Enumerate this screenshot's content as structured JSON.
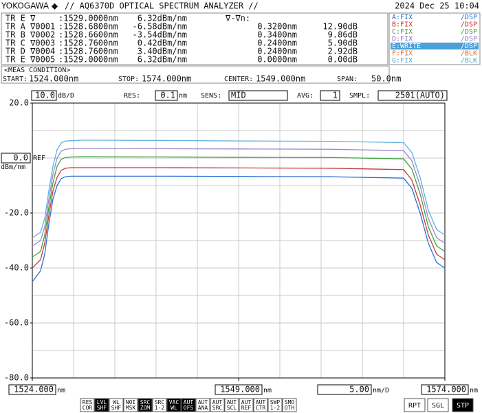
{
  "header": {
    "brand": "YOKOGAWA ◆",
    "title": "// AQ6370D OPTICAL SPECTRUM ANALYZER //",
    "datetime": "2024 Dec 25 10:04"
  },
  "marker_table": {
    "rows": [
      [
        "TR E ∇",
        ":1529.0000nm",
        "6.32dBm/nm",
        "∇-∇n:"
      ],
      [
        "TR A ∇0001",
        ":1528.6800nm",
        "-6.58dBm/nm",
        "0.3200nm",
        "12.90dB"
      ],
      [
        "TR B ∇0002",
        ":1528.6600nm",
        "-3.54dBm/nm",
        "0.3400nm",
        "9.86dB"
      ],
      [
        "TR C ∇0003",
        ":1528.7600nm",
        "0.42dBm/nm",
        "0.2400nm",
        "5.90dB"
      ],
      [
        "TR D ∇0004",
        ":1528.7600nm",
        "3.40dBm/nm",
        "0.2400nm",
        "2.92dB"
      ],
      [
        "TR E ∇0005",
        ":1529.0000nm",
        "6.32dBm/nm",
        "0.0000nm",
        "0.00dB"
      ]
    ]
  },
  "trace_legend": [
    {
      "trace": "A:FIX",
      "mode": "/DSP",
      "color": "#2a6fd0",
      "active": false
    },
    {
      "trace": "B:FIX",
      "mode": "/DSP",
      "color": "#d03030",
      "active": false
    },
    {
      "trace": "C:FIX",
      "mode": "/DSP",
      "color": "#40a040",
      "active": false
    },
    {
      "trace": "D:FIX",
      "mode": "/DSP",
      "color": "#9070c0",
      "active": false
    },
    {
      "trace": "E:WRITE",
      "mode": "/DSP",
      "color": "#4aa0d8",
      "active": true
    },
    {
      "trace": "F:FIX",
      "mode": "/BLK",
      "color": "#e07020",
      "active": false
    },
    {
      "trace": "G:FIX",
      "mode": "/BLK",
      "color": "#50a8d0",
      "active": false
    }
  ],
  "meas_condition": {
    "title": "<MEAS CONDITION>",
    "items": [
      {
        "label": "START:",
        "value": "1524.000nm"
      },
      {
        "label": "STOP:",
        "value": "1574.000nm"
      },
      {
        "label": "CENTER:",
        "value": "1549.000nm"
      },
      {
        "label": "SPAN:",
        "value": "50.0nm"
      }
    ]
  },
  "settings": [
    {
      "label": "RES:",
      "value": "0.1",
      "unit": "nm"
    },
    {
      "label": "SENS:",
      "value": "MID"
    },
    {
      "label": "AVG:",
      "value": "1"
    },
    {
      "label": "SMPL:",
      "value": "2501(AUTO)"
    }
  ],
  "chart_data": {
    "type": "line",
    "x": [
      1524,
      1525,
      1525.5,
      1526,
      1526.5,
      1527,
      1527.5,
      1528,
      1528.7,
      1530,
      1540,
      1550,
      1560,
      1569,
      1570,
      1571,
      1572,
      1573,
      1574
    ],
    "series": [
      {
        "color": "#60b0e0",
        "values": [
          -29,
          -27,
          -22,
          -12,
          -3,
          3,
          5.5,
          6.2,
          6.3,
          6.5,
          6.4,
          6.2,
          6.1,
          5.6,
          2,
          -7,
          -19,
          -26,
          -28
        ]
      },
      {
        "color": "#9a88c8",
        "values": [
          -32,
          -30,
          -25,
          -15,
          -6,
          0,
          2.5,
          3.2,
          3.4,
          3.5,
          3.4,
          3.3,
          3.2,
          2.7,
          -1,
          -10,
          -22,
          -29,
          -31
        ]
      },
      {
        "color": "#40a040",
        "values": [
          -36,
          -34,
          -28,
          -18,
          -9,
          -3,
          -0.5,
          0.2,
          0.4,
          0.5,
          0.4,
          0.3,
          0.2,
          -0.3,
          -4,
          -13,
          -25,
          -32,
          -34
        ]
      },
      {
        "color": "#c83a3a",
        "values": [
          -40,
          -37,
          -31,
          -21,
          -12,
          -7,
          -4.5,
          -3.7,
          -3.5,
          -3.5,
          -3.5,
          -3.6,
          -3.7,
          -4.2,
          -8,
          -17,
          -28,
          -35,
          -37
        ]
      },
      {
        "color": "#2a6fd0",
        "values": [
          -45,
          -41,
          -35,
          -24,
          -15,
          -10,
          -7.5,
          -6.8,
          -6.6,
          -6.6,
          -6.6,
          -6.7,
          -6.8,
          -7.3,
          -11,
          -20,
          -31,
          -38,
          -40
        ]
      }
    ],
    "xlim": [
      1524,
      1574
    ],
    "ylim": [
      -80,
      20
    ],
    "xticks": [
      {
        "value": 1524,
        "label": "1524.000"
      },
      {
        "value": 1549,
        "label": "1549.000"
      },
      {
        "value": 1574,
        "label": "1574.000"
      }
    ],
    "x_unit": "nm",
    "x_scale": {
      "value": 5,
      "label": "5.00"
    },
    "x_scale_unit": "nm/D",
    "yticks": [
      {
        "value": 20,
        "label": "20.0"
      },
      {
        "value": -20,
        "label": "-20.0"
      },
      {
        "value": -40,
        "label": "-40.0"
      },
      {
        "value": -60,
        "label": "-60.0"
      },
      {
        "value": -80,
        "label": "-80.0"
      }
    ],
    "y_scale": {
      "value": 10,
      "label": "10.0"
    },
    "y_scale_unit": "dB/D",
    "ref_level": {
      "value": 0,
      "label": "0.0"
    },
    "ref_text": "REF",
    "y_unit": "dBm/nm",
    "grid": true
  },
  "soft_keys": [
    {
      "lines": [
        "RES",
        "COR"
      ],
      "active": false
    },
    {
      "lines": [
        "LVL",
        "SHF"
      ],
      "active": true
    },
    {
      "lines": [
        "WL",
        "SHF"
      ],
      "active": false
    },
    {
      "lines": [
        "NOI",
        "MSK"
      ],
      "active": false
    },
    {
      "lines": [
        "SRC",
        "ZOM"
      ],
      "active": true
    },
    {
      "lines": [
        "SRC",
        "1-2"
      ],
      "active": false
    },
    {
      "lines": [
        "VAC",
        "WL"
      ],
      "active": true
    },
    {
      "lines": [
        "AUT",
        "OFS"
      ],
      "active": true
    },
    {
      "lines": [
        "AUT",
        "ANA"
      ],
      "active": false
    },
    {
      "lines": [
        "AUT",
        "SRC"
      ],
      "active": false
    },
    {
      "lines": [
        "AUT",
        "SCL"
      ],
      "active": false
    },
    {
      "lines": [
        "AUT",
        "REF"
      ],
      "active": false
    },
    {
      "lines": [
        "AUT",
        "CTR"
      ],
      "active": false
    },
    {
      "lines": [
        "SWP",
        "1-2"
      ],
      "active": false
    },
    {
      "lines": [
        "SMO",
        "OTH"
      ],
      "active": false
    },
    {
      "lines": [
        "RPT"
      ],
      "active": false
    },
    {
      "lines": [
        "SGL"
      ],
      "active": false
    },
    {
      "lines": [
        "STP"
      ],
      "active": true
    }
  ]
}
